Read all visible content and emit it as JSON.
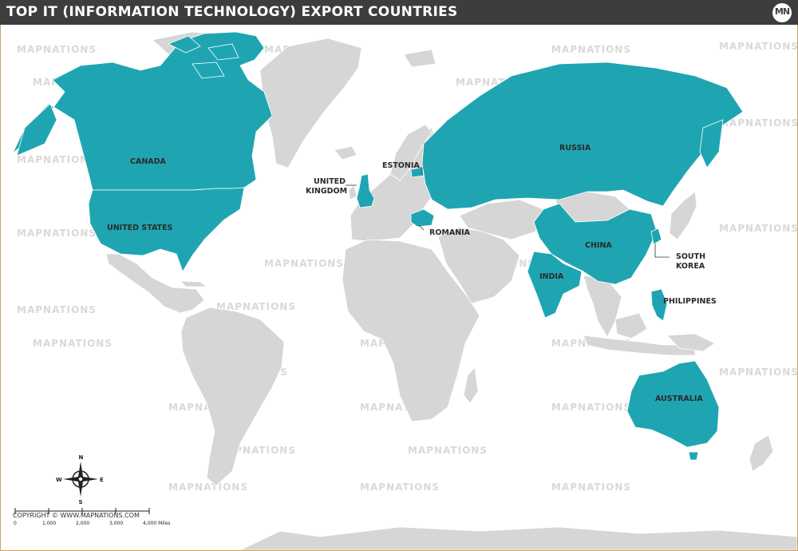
{
  "title": "TOP IT (INFORMATION TECHNOLOGY) EXPORT COUNTRIES",
  "logo_text": "MN",
  "watermark": "MAPNATIONS",
  "colors": {
    "highlight": "#1fa5b2",
    "land": "#d6d6d6",
    "border": "#ffffff",
    "header": "#3d3d3d",
    "frame": "#c9a56a"
  },
  "countries": [
    {
      "id": "canada",
      "label_lines": [
        "CANADA"
      ]
    },
    {
      "id": "united-states",
      "label_lines": [
        "UNITED STATES"
      ]
    },
    {
      "id": "united-kingdom",
      "label_lines": [
        "UNITED",
        "KINGDOM"
      ]
    },
    {
      "id": "estonia",
      "label_lines": [
        "ESTONIA"
      ]
    },
    {
      "id": "romania",
      "label_lines": [
        "ROMANIA"
      ]
    },
    {
      "id": "russia",
      "label_lines": [
        "RUSSIA"
      ]
    },
    {
      "id": "china",
      "label_lines": [
        "CHINA"
      ]
    },
    {
      "id": "india",
      "label_lines": [
        "INDIA"
      ]
    },
    {
      "id": "south-korea",
      "label_lines": [
        "SOUTH",
        "KOREA"
      ]
    },
    {
      "id": "philippines",
      "label_lines": [
        "PHILIPPINES"
      ]
    },
    {
      "id": "australia",
      "label_lines": [
        "AUSTRALIA"
      ]
    }
  ],
  "compass": {
    "n": "N",
    "s": "S",
    "e": "E",
    "w": "W"
  },
  "scale_bar": {
    "ticks": [
      "0",
      "1,000",
      "2,000",
      "3,000",
      "4,000 Miles"
    ]
  },
  "copyright": "COPYRIGHT © WWW.MAPNATIONS.COM"
}
